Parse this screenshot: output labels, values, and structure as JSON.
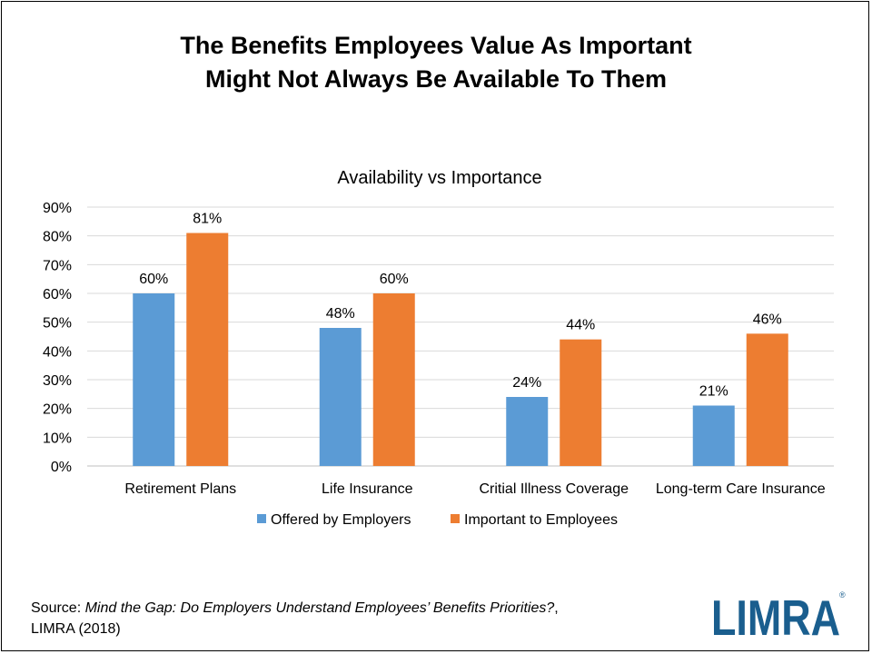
{
  "title_line1": "The Benefits Employees Value As Important",
  "title_line2": "Might Not Always Be Available To Them",
  "chart_data": {
    "type": "bar",
    "title": "Availability vs Importance",
    "categories": [
      "Retirement Plans",
      "Life Insurance",
      "Critial Illness Coverage",
      "Long-term Care Insurance"
    ],
    "series": [
      {
        "name": "Offered by Employers",
        "values": [
          60,
          48,
          24,
          21
        ],
        "color": "#5b9bd5"
      },
      {
        "name": "Important to Employees",
        "values": [
          81,
          60,
          44,
          46
        ],
        "color": "#ed7d31"
      }
    ],
    "value_suffix": "%",
    "ylim": [
      0,
      90
    ],
    "yticks": [
      0,
      10,
      20,
      30,
      40,
      50,
      60,
      70,
      80,
      90
    ],
    "ytick_labels": [
      "0%",
      "10%",
      "20%",
      "30%",
      "40%",
      "50%",
      "60%",
      "70%",
      "80%",
      "90%"
    ],
    "grid": true,
    "legend": "bottom"
  },
  "source": {
    "prefix": "Source: ",
    "title": "Mind the Gap: Do Employers Understand Employees’ Benefits Priorities?",
    "suffix": ",",
    "line2": "LIMRA (2018)"
  },
  "logo": {
    "text": "LIMRA",
    "registered": "®",
    "color": "#1a5e8e"
  }
}
